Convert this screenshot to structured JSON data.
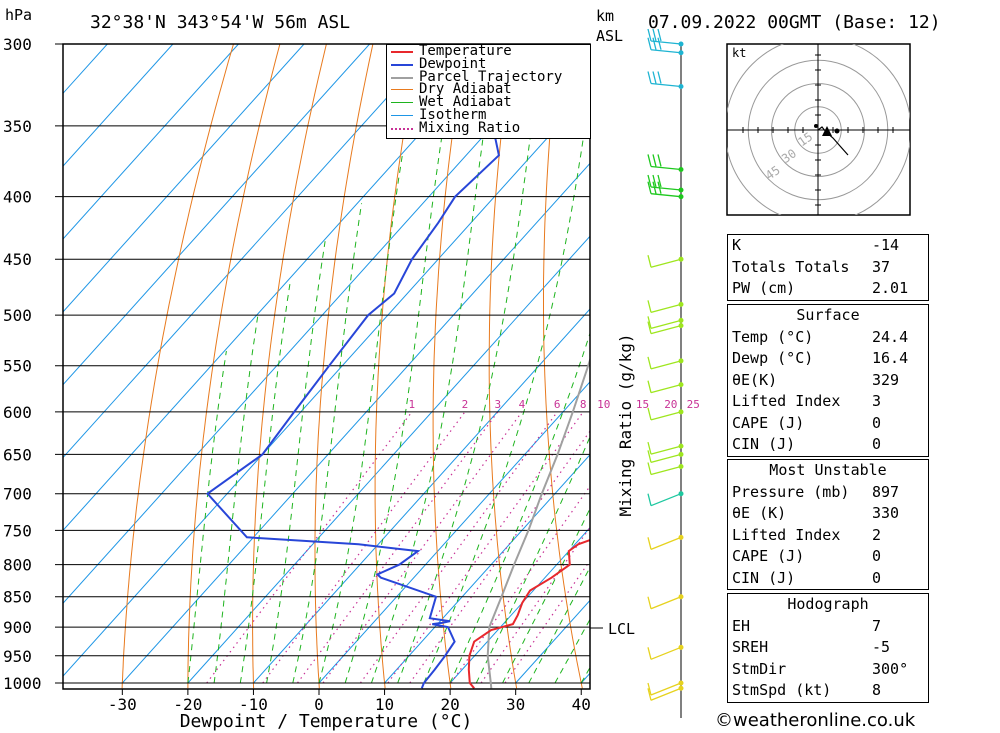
{
  "header": {
    "pressure_unit": "hPa",
    "location": "32°38'N 343°54'W 56m ASL",
    "km_unit_line1": "km",
    "km_unit_line2": "ASL",
    "datetime": "07.09.2022 00GMT (Base: 12)"
  },
  "legend": {
    "items": [
      {
        "label": "Temperature",
        "color": "#e8282c",
        "style": "solid"
      },
      {
        "label": "Dewpoint",
        "color": "#2846d8",
        "style": "solid"
      },
      {
        "label": "Parcel Trajectory",
        "color": "#a0a0a0",
        "style": "solid"
      },
      {
        "label": "Dry Adiabat",
        "color": "#e87a1e",
        "style": "solid"
      },
      {
        "label": "Wet Adiabat",
        "color": "#1eb41e",
        "style": "solid"
      },
      {
        "label": "Isotherm",
        "color": "#1e96e6",
        "style": "solid"
      },
      {
        "label": "Mixing Ratio",
        "color": "#c83296",
        "style": "dotted"
      }
    ]
  },
  "chart_data": {
    "type": "line",
    "title": "32°38'N 343°54'W 56m ASL",
    "xlabel": "Dewpoint / Temperature (°C)",
    "ylabel": "hPa",
    "right_axis_label": "Mixing Ratio (g/kg)",
    "x_ticks": [
      -30,
      -20,
      -10,
      0,
      10,
      20,
      30,
      40
    ],
    "pressure_levels": [
      300,
      350,
      400,
      450,
      500,
      550,
      600,
      650,
      700,
      750,
      800,
      850,
      900,
      950,
      1000
    ],
    "xlim": [
      -40,
      40
    ],
    "ylim": [
      1000,
      300
    ],
    "mixing_ratio_labels": [
      "1",
      "2",
      "3",
      "4",
      "6",
      "8",
      "10",
      "15",
      "20",
      "25"
    ],
    "lcl_label": "LCL",
    "lcl_pressure": 900,
    "series": [
      {
        "name": "Temperature",
        "points": [
          [
            1010,
            24.4
          ],
          [
            1000,
            23
          ],
          [
            975,
            21
          ],
          [
            950,
            19.2
          ],
          [
            925,
            18
          ],
          [
            905,
            19
          ],
          [
            895,
            21.5
          ],
          [
            880,
            21
          ],
          [
            860,
            20
          ],
          [
            840,
            19.5
          ],
          [
            820,
            21
          ],
          [
            800,
            22
          ],
          [
            780,
            20
          ],
          [
            770,
            20.5
          ],
          [
            760,
            22.5
          ],
          [
            700,
            17.5
          ],
          [
            650,
            13
          ],
          [
            600,
            7.5
          ],
          [
            550,
            2
          ],
          [
            520,
            -1.5
          ],
          [
            500,
            -5
          ],
          [
            450,
            -12
          ],
          [
            400,
            -19.5
          ],
          [
            370,
            -24
          ],
          [
            350,
            -27
          ],
          [
            330,
            -31
          ],
          [
            300,
            -36
          ]
        ]
      },
      {
        "name": "Dewpoint",
        "points": [
          [
            1010,
            16.4
          ],
          [
            1000,
            16
          ],
          [
            975,
            15.8
          ],
          [
            950,
            15.5
          ],
          [
            925,
            15
          ],
          [
            900,
            12
          ],
          [
            895,
            9.2
          ],
          [
            893,
            10.5
          ],
          [
            890,
            11.5
          ],
          [
            885,
            8
          ],
          [
            850,
            6
          ],
          [
            820,
            -5
          ],
          [
            815,
            -6
          ],
          [
            800,
            -4
          ],
          [
            780,
            -3
          ],
          [
            770,
            -13
          ],
          [
            760,
            -31
          ],
          [
            700,
            -43
          ],
          [
            650,
            -40
          ],
          [
            600,
            -41
          ],
          [
            550,
            -42
          ],
          [
            500,
            -43
          ],
          [
            480,
            -42
          ],
          [
            450,
            -44
          ],
          [
            420,
            -45
          ],
          [
            400,
            -46
          ],
          [
            370,
            -45
          ],
          [
            350,
            -50
          ],
          [
            330,
            -55
          ],
          [
            300,
            -61
          ]
        ]
      },
      {
        "name": "Parcel Trajectory",
        "points": [
          [
            1010,
            27
          ],
          [
            1000,
            26.2
          ],
          [
            950,
            22
          ],
          [
            900,
            18.3
          ],
          [
            850,
            16
          ],
          [
            800,
            13.5
          ],
          [
            750,
            11
          ],
          [
            700,
            8
          ],
          [
            650,
            5
          ],
          [
            600,
            1.5
          ],
          [
            550,
            -2.5
          ],
          [
            500,
            -7
          ],
          [
            450,
            -12.5
          ],
          [
            400,
            -19
          ],
          [
            350,
            -27
          ],
          [
            300,
            -36.5
          ]
        ]
      }
    ],
    "wind_barb_levels": [
      300,
      305,
      325,
      380,
      395,
      400,
      450,
      490,
      505,
      510,
      545,
      570,
      600,
      640,
      650,
      665,
      700,
      760,
      850,
      935,
      1000,
      1010
    ],
    "hodograph": {
      "unit_label": "kt",
      "ring_labels": [
        "15",
        "30",
        "45"
      ]
    }
  },
  "indices": {
    "K": {
      "label": "K",
      "value": "-14"
    },
    "TT": {
      "label": "Totals Totals",
      "value": "37"
    },
    "PW": {
      "label": "PW (cm)",
      "value": "2.01"
    }
  },
  "surface": {
    "title": "Surface",
    "rows": [
      {
        "label": "Temp (°C)",
        "value": "24.4"
      },
      {
        "label": "Dewp (°C)",
        "value": "16.4"
      },
      {
        "label": "θE(K)",
        "value": "329"
      },
      {
        "label": "Lifted Index",
        "value": "3"
      },
      {
        "label": "CAPE (J)",
        "value": "0"
      },
      {
        "label": "CIN (J)",
        "value": "0"
      }
    ]
  },
  "most_unstable": {
    "title": "Most Unstable",
    "rows": [
      {
        "label": "Pressure (mb)",
        "value": "897"
      },
      {
        "label": "θE (K)",
        "value": "330"
      },
      {
        "label": "Lifted Index",
        "value": "2"
      },
      {
        "label": "CAPE (J)",
        "value": "0"
      },
      {
        "label": "CIN (J)",
        "value": "0"
      }
    ]
  },
  "hodograph_table": {
    "title": "Hodograph",
    "rows": [
      {
        "label": "EH",
        "value": "7"
      },
      {
        "label": "SREH",
        "value": "-5"
      },
      {
        "label": "StmDir",
        "value": "300°"
      },
      {
        "label": "StmSpd (kt)",
        "value": "8"
      }
    ]
  },
  "credit": "©weatheronline.co.uk"
}
